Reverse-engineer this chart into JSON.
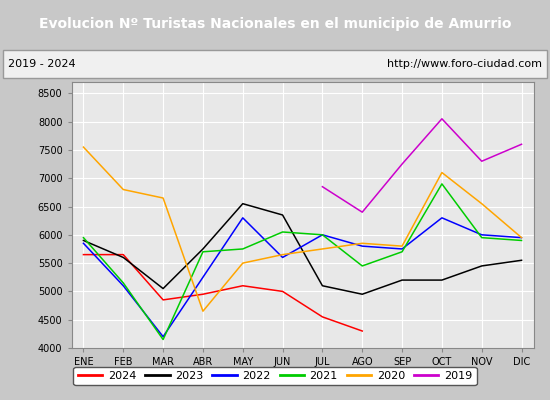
{
  "title": "Evolucion Nº Turistas Nacionales en el municipio de Amurrio",
  "subtitle_left": "2019 - 2024",
  "subtitle_right": "http://www.foro-ciudad.com",
  "months": [
    "ENE",
    "FEB",
    "MAR",
    "ABR",
    "MAY",
    "JUN",
    "JUL",
    "AGO",
    "SEP",
    "OCT",
    "NOV",
    "DIC"
  ],
  "series": {
    "2024": {
      "color": "#ff0000",
      "data": [
        5650,
        5650,
        4850,
        4950,
        5100,
        5000,
        4550,
        4300,
        null,
        null,
        null,
        null
      ]
    },
    "2023": {
      "color": "#000000",
      "data": [
        5900,
        5600,
        5050,
        5750,
        6550,
        6350,
        5100,
        4950,
        5200,
        5200,
        5450,
        5550
      ]
    },
    "2022": {
      "color": "#0000ff",
      "data": [
        5850,
        5100,
        4200,
        5250,
        6300,
        5600,
        6000,
        5800,
        5750,
        6300,
        6000,
        5950
      ]
    },
    "2021": {
      "color": "#00cc00",
      "data": [
        5950,
        5150,
        4150,
        5700,
        5750,
        6050,
        6000,
        5450,
        5700,
        6900,
        5950,
        5900
      ]
    },
    "2020": {
      "color": "#ffa500",
      "data": [
        7550,
        6800,
        6650,
        4650,
        5500,
        5650,
        5750,
        5850,
        5800,
        7100,
        6550,
        5950
      ]
    },
    "2019": {
      "color": "#cc00cc",
      "data": [
        null,
        null,
        null,
        null,
        null,
        null,
        6850,
        6400,
        7250,
        8050,
        7300,
        7600
      ]
    }
  },
  "ylim": [
    4000,
    8700
  ],
  "yticks": [
    4000,
    4500,
    5000,
    5500,
    6000,
    6500,
    7000,
    7500,
    8000,
    8500
  ],
  "outer_bg": "#c8c8c8",
  "plot_bg_color": "#e8e8e8",
  "header_bg_color": "#4488cc",
  "header_text_color": "#ffffff",
  "subtitle_bg": "#f0f0f0",
  "grid_color": "#ffffff",
  "title_fontsize": 10,
  "legend_order": [
    "2024",
    "2023",
    "2022",
    "2021",
    "2020",
    "2019"
  ]
}
